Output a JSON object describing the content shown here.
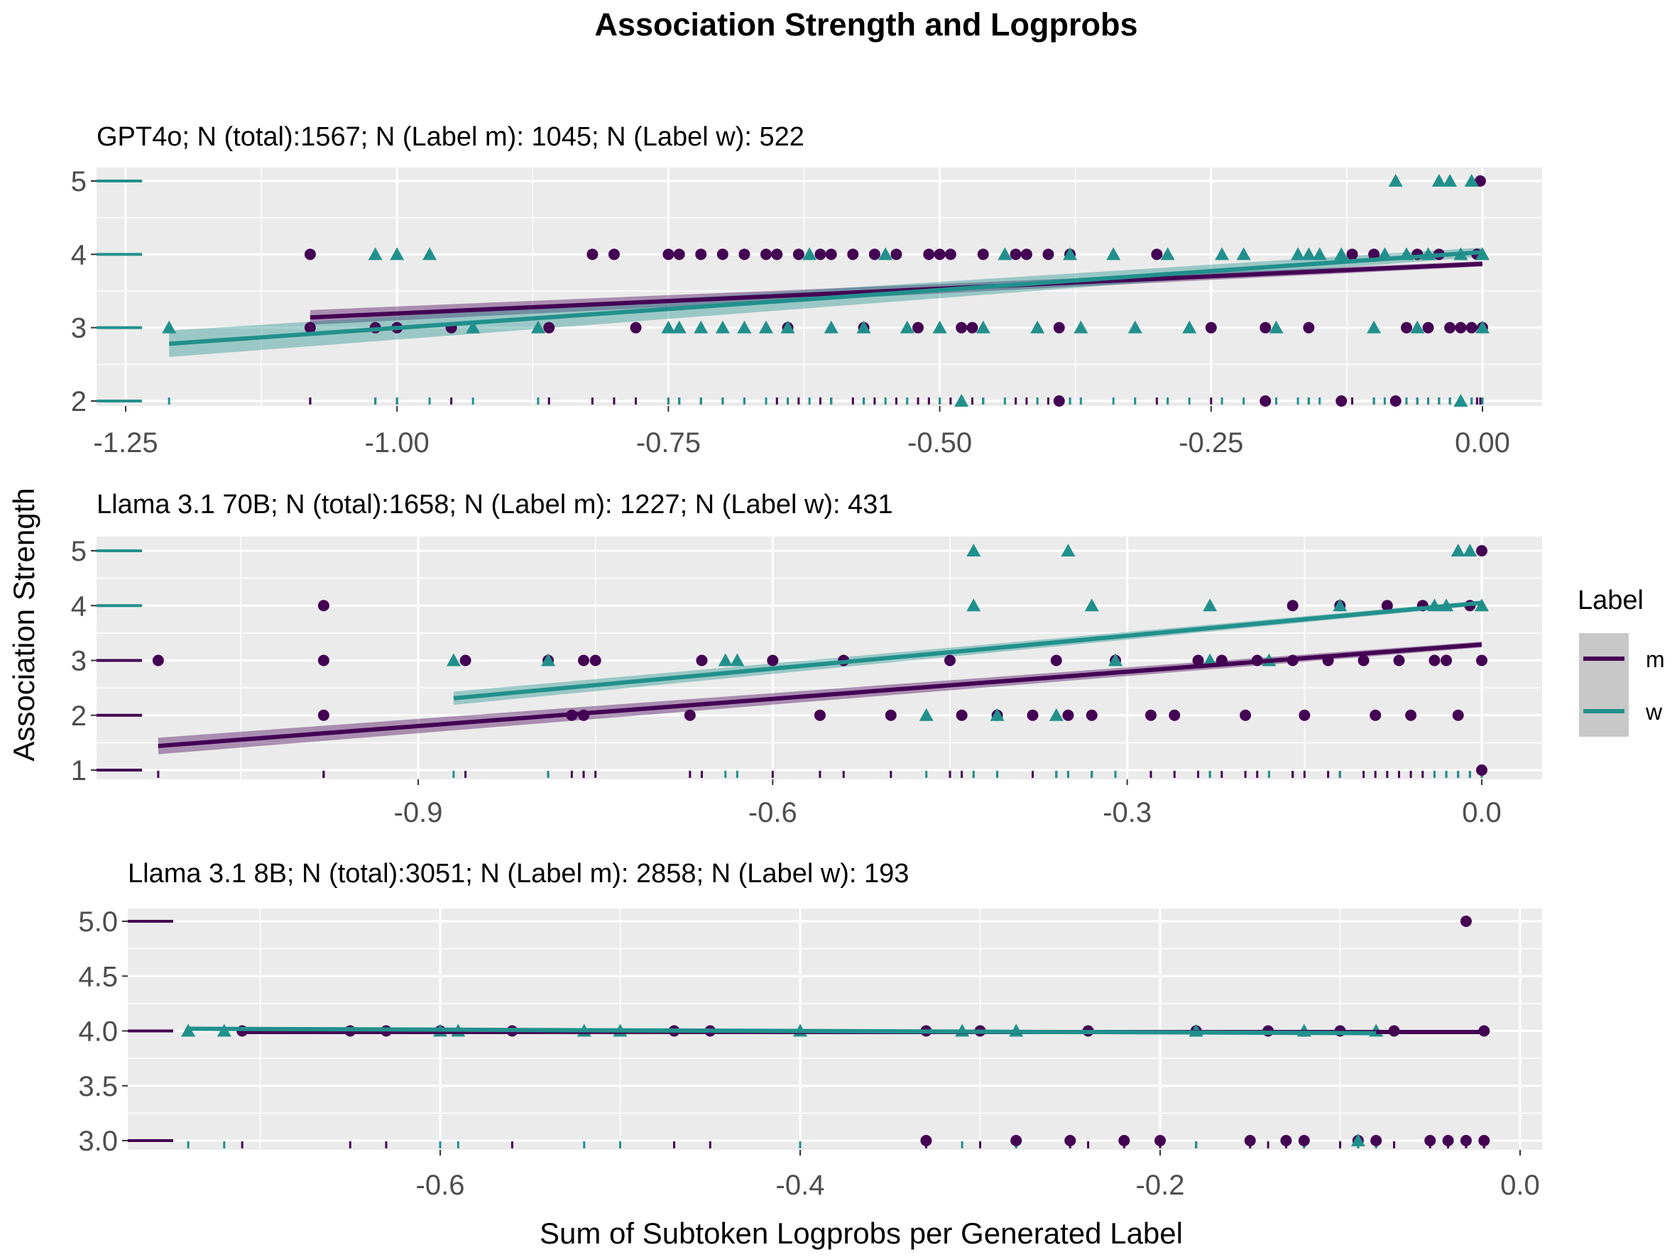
{
  "figure": {
    "title": "Association Strength and Logprobs",
    "xlabel": "Sum of Subtoken Logprobs per Generated Label",
    "ylabel": "Association Strength"
  },
  "legend": {
    "title": "Label",
    "items": [
      {
        "label": "m",
        "color": "#440154"
      },
      {
        "label": "w",
        "color": "#21908C"
      }
    ]
  },
  "chart_data": [
    {
      "type": "scatter",
      "title": "GPT4o; N (total):1567; N (Label m): 1045; N (Label w): 522",
      "xlim": [
        -1.25,
        0.0
      ],
      "ylim": [
        2,
        5
      ],
      "xticks": [
        -1.25,
        -1.0,
        -0.75,
        -0.5,
        -0.25,
        0.0
      ],
      "xtick_labels": [
        "-1.25",
        "-1.00",
        "-0.75",
        "-0.50",
        "-0.25",
        "0.00"
      ],
      "yticks": [
        2,
        3,
        4,
        5
      ],
      "ytick_labels": [
        "2",
        "3",
        "4",
        "5"
      ],
      "grid": true,
      "series": [
        {
          "name": "m",
          "marker": "circle",
          "points": [
            [
              -1.08,
              4
            ],
            [
              -1.08,
              3
            ],
            [
              -1.02,
              3
            ],
            [
              -1.0,
              3
            ],
            [
              -0.95,
              3
            ],
            [
              -0.86,
              3
            ],
            [
              -0.82,
              4
            ],
            [
              -0.8,
              4
            ],
            [
              -0.78,
              3
            ],
            [
              -0.75,
              4
            ],
            [
              -0.74,
              4
            ],
            [
              -0.72,
              4
            ],
            [
              -0.7,
              4
            ],
            [
              -0.68,
              4
            ],
            [
              -0.66,
              4
            ],
            [
              -0.65,
              4
            ],
            [
              -0.64,
              3
            ],
            [
              -0.63,
              4
            ],
            [
              -0.61,
              4
            ],
            [
              -0.6,
              4
            ],
            [
              -0.58,
              4
            ],
            [
              -0.57,
              3
            ],
            [
              -0.56,
              4
            ],
            [
              -0.54,
              4
            ],
            [
              -0.52,
              3
            ],
            [
              -0.51,
              4
            ],
            [
              -0.5,
              4
            ],
            [
              -0.49,
              4
            ],
            [
              -0.48,
              3
            ],
            [
              -0.47,
              3
            ],
            [
              -0.46,
              4
            ],
            [
              -0.43,
              4
            ],
            [
              -0.42,
              4
            ],
            [
              -0.4,
              4
            ],
            [
              -0.39,
              3
            ],
            [
              -0.39,
              2
            ],
            [
              -0.38,
              4
            ],
            [
              -0.3,
              4
            ],
            [
              -0.25,
              3
            ],
            [
              -0.2,
              3
            ],
            [
              -0.2,
              2
            ],
            [
              -0.16,
              3
            ],
            [
              -0.13,
              2
            ],
            [
              -0.12,
              4
            ],
            [
              -0.1,
              4
            ],
            [
              -0.08,
              2
            ],
            [
              -0.07,
              3
            ],
            [
              -0.06,
              4
            ],
            [
              -0.05,
              3
            ],
            [
              -0.04,
              4
            ],
            [
              -0.03,
              3
            ],
            [
              -0.02,
              3
            ],
            [
              -0.01,
              3
            ],
            [
              -0.005,
              4
            ],
            [
              -0.002,
              5
            ],
            [
              0.0,
              3
            ]
          ]
        },
        {
          "name": "w",
          "marker": "triangle",
          "points": [
            [
              -1.21,
              3
            ],
            [
              -1.02,
              4
            ],
            [
              -1.0,
              4
            ],
            [
              -0.97,
              4
            ],
            [
              -0.93,
              3
            ],
            [
              -0.87,
              3
            ],
            [
              -0.75,
              3
            ],
            [
              -0.74,
              3
            ],
            [
              -0.72,
              3
            ],
            [
              -0.7,
              3
            ],
            [
              -0.68,
              3
            ],
            [
              -0.66,
              3
            ],
            [
              -0.64,
              3
            ],
            [
              -0.62,
              4
            ],
            [
              -0.6,
              3
            ],
            [
              -0.57,
              3
            ],
            [
              -0.55,
              4
            ],
            [
              -0.53,
              3
            ],
            [
              -0.5,
              3
            ],
            [
              -0.48,
              2
            ],
            [
              -0.46,
              3
            ],
            [
              -0.44,
              4
            ],
            [
              -0.41,
              3
            ],
            [
              -0.38,
              4
            ],
            [
              -0.37,
              3
            ],
            [
              -0.34,
              4
            ],
            [
              -0.32,
              3
            ],
            [
              -0.29,
              4
            ],
            [
              -0.27,
              3
            ],
            [
              -0.24,
              4
            ],
            [
              -0.22,
              4
            ],
            [
              -0.19,
              3
            ],
            [
              -0.17,
              4
            ],
            [
              -0.16,
              4
            ],
            [
              -0.15,
              4
            ],
            [
              -0.13,
              4
            ],
            [
              -0.1,
              3
            ],
            [
              -0.09,
              4
            ],
            [
              -0.08,
              5
            ],
            [
              -0.07,
              4
            ],
            [
              -0.06,
              3
            ],
            [
              -0.05,
              4
            ],
            [
              -0.04,
              5
            ],
            [
              -0.03,
              5
            ],
            [
              -0.02,
              4
            ],
            [
              -0.02,
              2
            ],
            [
              -0.01,
              5
            ],
            [
              0.0,
              4
            ],
            [
              0.0,
              3
            ]
          ]
        }
      ],
      "fits": [
        {
          "name": "m",
          "x": [
            -1.08,
            0.0
          ],
          "y": [
            3.14,
            3.87
          ],
          "se": 0.1
        },
        {
          "name": "w",
          "x": [
            -1.21,
            0.0
          ],
          "y": [
            2.78,
            4.03
          ],
          "se": 0.18
        }
      ]
    },
    {
      "type": "scatter",
      "title": "Llama 3.1 70B; N (total):1658; N (Label m): 1227; N (Label w): 431",
      "xlim": [
        -1.17,
        0.0
      ],
      "ylim": [
        1,
        5
      ],
      "xticks": [
        -0.9,
        -0.6,
        -0.3,
        0.0
      ],
      "xtick_labels": [
        "-0.9",
        "-0.6",
        "-0.3",
        "0.0"
      ],
      "yticks": [
        1,
        2,
        3,
        4,
        5
      ],
      "ytick_labels": [
        "1",
        "2",
        "3",
        "4",
        "5"
      ],
      "grid": true,
      "series": [
        {
          "name": "m",
          "marker": "circle",
          "points": [
            [
              -1.12,
              3
            ],
            [
              -0.98,
              4
            ],
            [
              -0.98,
              3
            ],
            [
              -0.98,
              2
            ],
            [
              -0.86,
              3
            ],
            [
              -0.79,
              3
            ],
            [
              -0.77,
              2
            ],
            [
              -0.76,
              2
            ],
            [
              -0.76,
              3
            ],
            [
              -0.75,
              3
            ],
            [
              -0.67,
              2
            ],
            [
              -0.66,
              3
            ],
            [
              -0.6,
              3
            ],
            [
              -0.56,
              2
            ],
            [
              -0.54,
              3
            ],
            [
              -0.5,
              2
            ],
            [
              -0.45,
              3
            ],
            [
              -0.44,
              2
            ],
            [
              -0.41,
              2
            ],
            [
              -0.38,
              2
            ],
            [
              -0.36,
              3
            ],
            [
              -0.35,
              2
            ],
            [
              -0.33,
              2
            ],
            [
              -0.31,
              3
            ],
            [
              -0.28,
              2
            ],
            [
              -0.26,
              2
            ],
            [
              -0.24,
              3
            ],
            [
              -0.22,
              3
            ],
            [
              -0.2,
              2
            ],
            [
              -0.19,
              3
            ],
            [
              -0.16,
              4
            ],
            [
              -0.16,
              3
            ],
            [
              -0.15,
              2
            ],
            [
              -0.13,
              3
            ],
            [
              -0.12,
              4
            ],
            [
              -0.1,
              3
            ],
            [
              -0.09,
              2
            ],
            [
              -0.08,
              4
            ],
            [
              -0.07,
              3
            ],
            [
              -0.06,
              2
            ],
            [
              -0.05,
              4
            ],
            [
              -0.04,
              3
            ],
            [
              -0.03,
              3
            ],
            [
              -0.02,
              2
            ],
            [
              -0.01,
              4
            ],
            [
              0.0,
              3
            ],
            [
              0.0,
              5
            ],
            [
              0.0,
              1
            ]
          ]
        },
        {
          "name": "w",
          "marker": "triangle",
          "points": [
            [
              -0.87,
              3
            ],
            [
              -0.79,
              3
            ],
            [
              -0.64,
              3
            ],
            [
              -0.63,
              3
            ],
            [
              -0.47,
              2
            ],
            [
              -0.43,
              5
            ],
            [
              -0.43,
              4
            ],
            [
              -0.41,
              2
            ],
            [
              -0.36,
              2
            ],
            [
              -0.35,
              5
            ],
            [
              -0.33,
              4
            ],
            [
              -0.31,
              3
            ],
            [
              -0.23,
              3
            ],
            [
              -0.23,
              4
            ],
            [
              -0.18,
              3
            ],
            [
              -0.12,
              4
            ],
            [
              -0.04,
              4
            ],
            [
              -0.03,
              4
            ],
            [
              -0.02,
              5
            ],
            [
              -0.01,
              5
            ],
            [
              0.0,
              4
            ]
          ]
        }
      ],
      "fits": [
        {
          "name": "m",
          "x": [
            -1.12,
            0.0
          ],
          "y": [
            1.44,
            3.29
          ],
          "se": 0.15
        },
        {
          "name": "w",
          "x": [
            -0.87,
            0.0
          ],
          "y": [
            2.31,
            4.05
          ],
          "se": 0.12
        }
      ]
    },
    {
      "type": "scatter",
      "title": "Llama 3.1 8B; N (total):3051; N (Label m): 2858; N (Label w): 193",
      "xlim": [
        -0.76,
        0.0
      ],
      "ylim": [
        3.0,
        5.0
      ],
      "xticks": [
        -0.6,
        -0.4,
        -0.2,
        0.0
      ],
      "xtick_labels": [
        "-0.6",
        "-0.4",
        "-0.2",
        "0.0"
      ],
      "yticks": [
        3.0,
        3.5,
        4.0,
        4.5,
        5.0
      ],
      "ytick_labels": [
        "3.0",
        "3.5",
        "4.0",
        "4.5",
        "5.0"
      ],
      "grid": true,
      "series": [
        {
          "name": "m",
          "marker": "circle",
          "points": [
            [
              -0.71,
              4
            ],
            [
              -0.65,
              4
            ],
            [
              -0.63,
              4
            ],
            [
              -0.6,
              4
            ],
            [
              -0.56,
              4
            ],
            [
              -0.47,
              4
            ],
            [
              -0.45,
              4
            ],
            [
              -0.33,
              4
            ],
            [
              -0.33,
              3
            ],
            [
              -0.3,
              4
            ],
            [
              -0.28,
              3
            ],
            [
              -0.25,
              3
            ],
            [
              -0.24,
              4
            ],
            [
              -0.22,
              3
            ],
            [
              -0.2,
              3
            ],
            [
              -0.18,
              4
            ],
            [
              -0.15,
              3
            ],
            [
              -0.14,
              4
            ],
            [
              -0.13,
              3
            ],
            [
              -0.12,
              3
            ],
            [
              -0.1,
              4
            ],
            [
              -0.09,
              3
            ],
            [
              -0.08,
              3
            ],
            [
              -0.07,
              4
            ],
            [
              -0.05,
              3
            ],
            [
              -0.04,
              3
            ],
            [
              -0.03,
              5
            ],
            [
              -0.03,
              3
            ],
            [
              -0.02,
              4
            ],
            [
              -0.02,
              3
            ]
          ]
        },
        {
          "name": "w",
          "marker": "triangle",
          "points": [
            [
              -0.74,
              4
            ],
            [
              -0.72,
              4
            ],
            [
              -0.6,
              4
            ],
            [
              -0.59,
              4
            ],
            [
              -0.52,
              4
            ],
            [
              -0.5,
              4
            ],
            [
              -0.4,
              4
            ],
            [
              -0.31,
              4
            ],
            [
              -0.28,
              4
            ],
            [
              -0.18,
              4
            ],
            [
              -0.12,
              4
            ],
            [
              -0.09,
              3
            ],
            [
              -0.08,
              4
            ]
          ]
        }
      ],
      "fits": [
        {
          "name": "m",
          "x": [
            -0.71,
            -0.02
          ],
          "y": [
            3.99,
            3.99
          ],
          "se": 0.008
        },
        {
          "name": "w",
          "x": [
            -0.74,
            -0.08
          ],
          "y": [
            4.02,
            3.98
          ],
          "se": 0.01
        }
      ]
    }
  ]
}
